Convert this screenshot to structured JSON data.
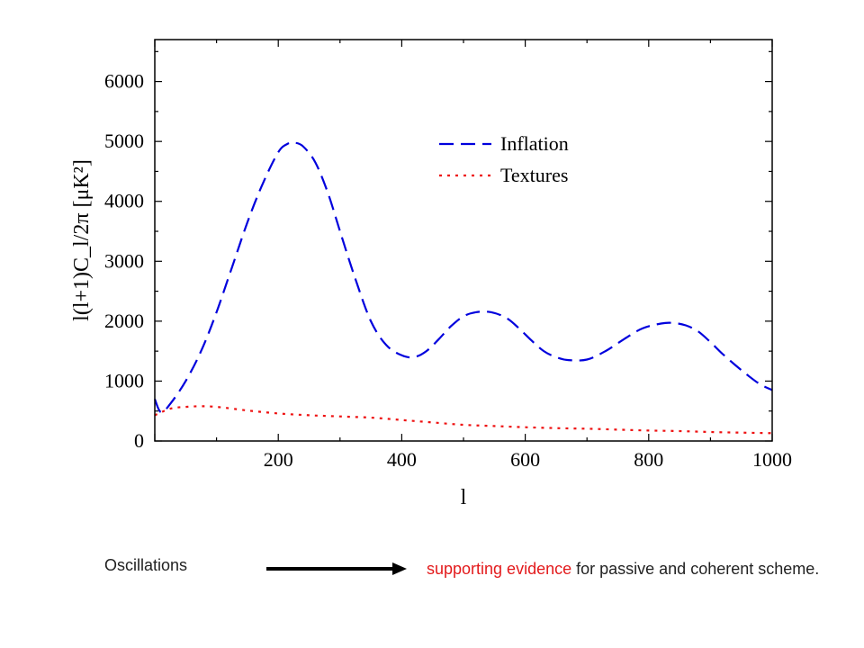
{
  "chart_data": {
    "type": "line",
    "title": "",
    "xlabel": "l",
    "ylabel": "l(l+1)C_l/2π [μK²]",
    "xlim": [
      0,
      1000
    ],
    "ylim": [
      0,
      6700
    ],
    "xticks": [
      200,
      400,
      600,
      800,
      1000
    ],
    "yticks": [
      0,
      1000,
      2000,
      3000,
      4000,
      5000,
      6000
    ],
    "xtick_labels": [
      "200",
      "400",
      "600",
      "800",
      "1000"
    ],
    "ytick_labels": [
      "0",
      "1000",
      "2000",
      "3000",
      "4000",
      "5000",
      "6000"
    ],
    "grid": false,
    "legend_position": "top-right",
    "series": [
      {
        "name": "Inflation",
        "color": "#0000dd",
        "style": "dashed",
        "x": [
          0,
          10,
          25,
          50,
          75,
          100,
          125,
          150,
          175,
          200,
          215,
          225,
          240,
          260,
          280,
          300,
          325,
          350,
          375,
          400,
          420,
          440,
          460,
          480,
          500,
          520,
          545,
          570,
          590,
          610,
          630,
          650,
          670,
          700,
          730,
          760,
          790,
          820,
          840,
          860,
          880,
          900,
          920,
          940,
          960,
          980,
          1000
        ],
        "y": [
          700,
          480,
          620,
          1000,
          1500,
          2150,
          2900,
          3650,
          4300,
          4820,
          4960,
          4980,
          4920,
          4650,
          4150,
          3500,
          2700,
          2000,
          1600,
          1430,
          1400,
          1500,
          1700,
          1920,
          2080,
          2150,
          2150,
          2050,
          1880,
          1680,
          1500,
          1400,
          1350,
          1360,
          1500,
          1700,
          1880,
          1960,
          1970,
          1930,
          1830,
          1650,
          1450,
          1270,
          1100,
          950,
          850
        ]
      },
      {
        "name": "Textures",
        "color": "#ee1111",
        "style": "dotted",
        "x": [
          0,
          25,
          50,
          75,
          100,
          150,
          200,
          250,
          300,
          350,
          400,
          450,
          500,
          550,
          600,
          650,
          700,
          750,
          800,
          850,
          900,
          950,
          1000
        ],
        "y": [
          430,
          540,
          570,
          580,
          570,
          510,
          460,
          430,
          410,
          390,
          350,
          310,
          270,
          250,
          230,
          215,
          205,
          190,
          175,
          165,
          150,
          140,
          130
        ]
      }
    ]
  },
  "caption": {
    "left": "Oscillations",
    "right_highlight": "supporting evidence",
    "right_rest": " for passive and coherent scheme.",
    "highlight_color": "#e31a1c"
  }
}
